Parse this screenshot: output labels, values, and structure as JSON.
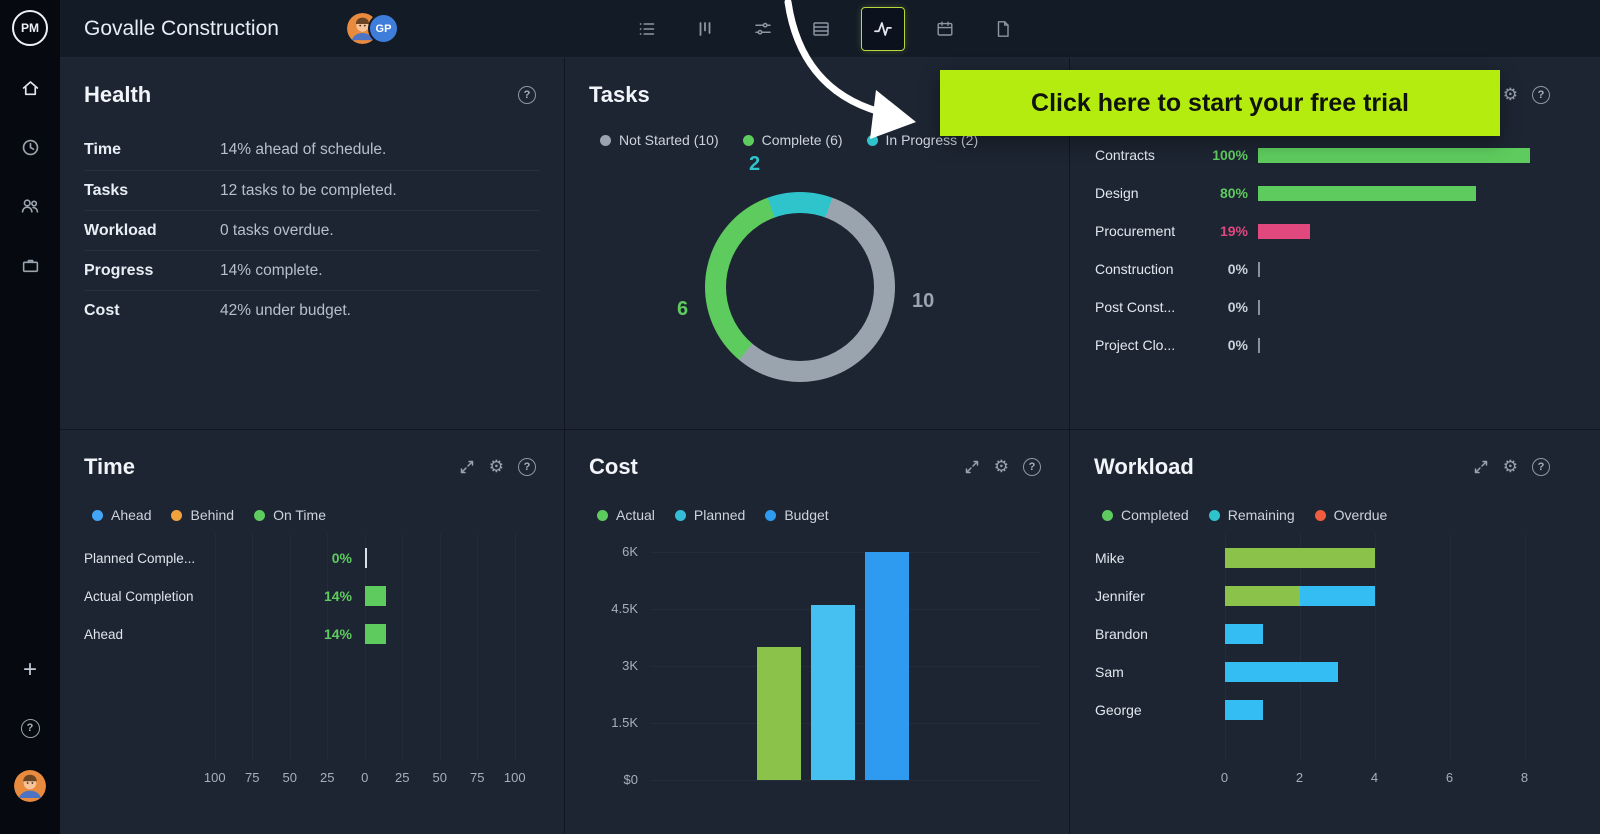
{
  "icons": {
    "help_glyph": "?",
    "gear_glyph": "⚙",
    "plus_glyph": "+"
  },
  "app": {
    "logo_text": "PM",
    "title": "Govalle Construction",
    "avatar_initials": "GP"
  },
  "trial_banner": {
    "text": "Click here to start your free trial",
    "bg_color": "#b5ec0f",
    "text_color": "#10130a"
  },
  "health": {
    "title": "Health",
    "rows": [
      {
        "label": "Time",
        "value": "14% ahead of schedule."
      },
      {
        "label": "Tasks",
        "value": "12 tasks to be completed."
      },
      {
        "label": "Workload",
        "value": "0 tasks overdue."
      },
      {
        "label": "Progress",
        "value": "14% complete."
      },
      {
        "label": "Cost",
        "value": "42% under budget."
      }
    ]
  },
  "tasks": {
    "title": "Tasks",
    "chart_data": {
      "type": "pie",
      "total": 18,
      "legend": [
        {
          "label": "Not Started (10)",
          "color": "#9aa4ae"
        },
        {
          "label": "Complete (6)",
          "color": "#5ecb5e"
        },
        {
          "label": "In Progress (2)",
          "color": "#2fc4cb"
        }
      ],
      "segments": [
        {
          "name": "In Progress",
          "value": 2,
          "color": "#2fc4cb"
        },
        {
          "name": "Not Started",
          "value": 10,
          "color": "#9aa4ae"
        },
        {
          "name": "Complete",
          "value": 6,
          "color": "#5ecb5e"
        }
      ],
      "callouts": [
        {
          "text": "2",
          "color": "#2fc4cb"
        },
        {
          "text": "6",
          "color": "#5ecb5e"
        },
        {
          "text": "10",
          "color": "#9aa4ae"
        }
      ]
    }
  },
  "phase_progress": {
    "chart_data": {
      "type": "bar",
      "xmax": 100,
      "rows": [
        {
          "label": "Contracts",
          "pct_label": "100%",
          "value": 100,
          "bar_color": "#5ecb5e",
          "pct_color": "#5ecb5e"
        },
        {
          "label": "Design",
          "pct_label": "80%",
          "value": 80,
          "bar_color": "#5ecb5e",
          "pct_color": "#5ecb5e"
        },
        {
          "label": "Procurement",
          "pct_label": "19%",
          "value": 19,
          "bar_color": "#e0487e",
          "pct_color": "#e0487e"
        },
        {
          "label": "Construction",
          "pct_label": "0%",
          "value": 0,
          "bar_color": "#8b929e",
          "pct_color": "#c9d1da"
        },
        {
          "label": "Post Const...",
          "pct_label": "0%",
          "value": 0,
          "bar_color": "#8b929e",
          "pct_color": "#c9d1da"
        },
        {
          "label": "Project Clo...",
          "pct_label": "0%",
          "value": 0,
          "bar_color": "#8b929e",
          "pct_color": "#c9d1da"
        }
      ]
    }
  },
  "time": {
    "title": "Time",
    "legend": [
      {
        "label": "Ahead",
        "color": "#42a5f5"
      },
      {
        "label": "Behind",
        "color": "#f0a23c"
      },
      {
        "label": "On Time",
        "color": "#5ecb5e"
      }
    ],
    "chart_data": {
      "type": "bar",
      "xlim": [
        -100,
        100
      ],
      "x_ticks": [
        "100",
        "75",
        "50",
        "25",
        "0",
        "25",
        "50",
        "75",
        "100"
      ],
      "rows": [
        {
          "label": "Planned Comple...",
          "pct_label": "0%",
          "value": 0,
          "bar_color": "#d9dfe6",
          "pct_color": "#5ecb5e"
        },
        {
          "label": "Actual Completion",
          "pct_label": "14%",
          "value": 14,
          "bar_color": "#5ecb5e",
          "pct_color": "#5ecb5e"
        },
        {
          "label": "Ahead",
          "pct_label": "14%",
          "value": 14,
          "bar_color": "#5ecb5e",
          "pct_color": "#5ecb5e"
        }
      ]
    }
  },
  "cost": {
    "title": "Cost",
    "legend": [
      {
        "label": "Actual",
        "color": "#5ecb5e"
      },
      {
        "label": "Planned",
        "color": "#35bdd8"
      },
      {
        "label": "Budget",
        "color": "#2e9bf0"
      }
    ],
    "chart_data": {
      "type": "bar",
      "ylim": [
        0,
        6000
      ],
      "y_ticks": [
        "6K",
        "4.5K",
        "3K",
        "1.5K",
        "$0"
      ],
      "bars": [
        {
          "name": "Actual",
          "value": 3500,
          "color": "#8bc34a"
        },
        {
          "name": "Planned",
          "value": 4600,
          "color": "#45c0f0"
        },
        {
          "name": "Budget",
          "value": 6000,
          "color": "#2e9bf0"
        }
      ]
    }
  },
  "workload": {
    "title": "Workload",
    "legend": [
      {
        "label": "Completed",
        "color": "#5ecb5e"
      },
      {
        "label": "Remaining",
        "color": "#2fc4cb"
      },
      {
        "label": "Overdue",
        "color": "#f05c3c"
      }
    ],
    "chart_data": {
      "type": "bar",
      "xlim": [
        0,
        8
      ],
      "x_ticks": [
        "0",
        "2",
        "4",
        "6",
        "8"
      ],
      "rows": [
        {
          "name": "Mike",
          "segments": [
            {
              "status": "Completed",
              "value": 4,
              "color": "#8bc34a"
            }
          ]
        },
        {
          "name": "Jennifer",
          "segments": [
            {
              "status": "Completed",
              "value": 2,
              "color": "#8bc34a"
            },
            {
              "status": "Remaining",
              "value": 2,
              "color": "#33bdf2"
            }
          ]
        },
        {
          "name": "Brandon",
          "segments": [
            {
              "status": "Remaining",
              "value": 1,
              "color": "#33bdf2"
            }
          ]
        },
        {
          "name": "Sam",
          "segments": [
            {
              "status": "Remaining",
              "value": 3,
              "color": "#33bdf2"
            }
          ]
        },
        {
          "name": "George",
          "segments": [
            {
              "status": "Remaining",
              "value": 1,
              "color": "#33bdf2"
            }
          ]
        }
      ]
    }
  }
}
